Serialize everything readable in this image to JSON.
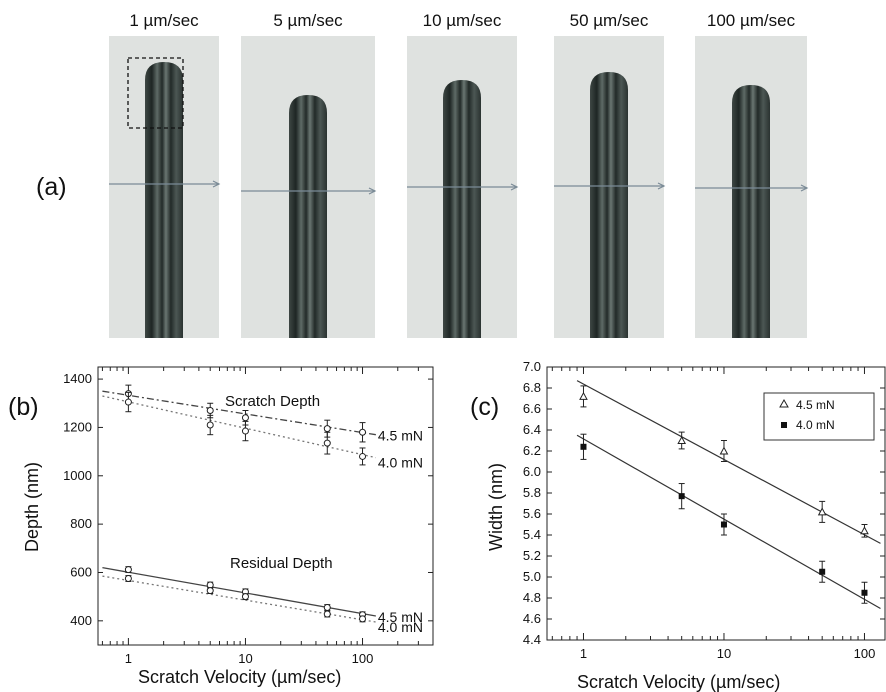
{
  "panel_a": {
    "label": "(a)",
    "images": [
      {
        "velocity_label": "1 µm/sec"
      },
      {
        "velocity_label": "5 µm/sec"
      },
      {
        "velocity_label": "10 µm/sec"
      },
      {
        "velocity_label": "50 µm/sec"
      },
      {
        "velocity_label": "100 µm/sec"
      }
    ]
  },
  "chart_data": [
    {
      "panel": "(b)",
      "type": "line",
      "xlabel": "Scratch Velocity (µm/sec)",
      "ylabel": "Depth (nm)",
      "xscale": "log",
      "xlim": [
        0.55,
        400
      ],
      "ylim": [
        300,
        1450
      ],
      "xticks": [
        1,
        10,
        100
      ],
      "xtick_labels": [
        "1",
        "10",
        "100"
      ],
      "yticks": [
        400,
        600,
        800,
        1000,
        1200,
        1400
      ],
      "ytick_labels": [
        "400",
        "600",
        "800",
        "1000",
        "1200",
        "1400"
      ],
      "annotations": [
        "Scratch Depth",
        "Residual Depth"
      ],
      "x": [
        1,
        5,
        10,
        50,
        100
      ],
      "series": [
        {
          "name": "4.5 mN",
          "group": "Scratch Depth",
          "values": [
            1340,
            1270,
            1240,
            1195,
            1180
          ],
          "errors": [
            35,
            30,
            30,
            35,
            40
          ],
          "fit": [
            1350,
            1170
          ]
        },
        {
          "name": "4.0 mN",
          "group": "Scratch Depth",
          "values": [
            1305,
            1210,
            1185,
            1135,
            1080
          ],
          "errors": [
            40,
            40,
            40,
            45,
            35
          ],
          "fit": [
            1330,
            1075
          ]
        },
        {
          "name": "4.5 mN",
          "group": "Residual Depth",
          "values": [
            612,
            548,
            520,
            455,
            425
          ],
          "errors": [
            12,
            12,
            12,
            12,
            12
          ],
          "fit": [
            620,
            420
          ]
        },
        {
          "name": "4.0 mN",
          "group": "Residual Depth",
          "values": [
            575,
            525,
            500,
            428,
            408
          ],
          "errors": [
            12,
            12,
            12,
            12,
            12
          ],
          "fit": [
            585,
            395
          ]
        }
      ]
    },
    {
      "panel": "(c)",
      "type": "scatter",
      "xlabel": "Scratch Velocity (µm/sec)",
      "ylabel": "Width (nm)",
      "xscale": "log",
      "xlim": [
        0.55,
        140
      ],
      "ylim": [
        4.4,
        7.0
      ],
      "xticks": [
        1,
        10,
        100
      ],
      "xtick_labels": [
        "1",
        "10",
        "100"
      ],
      "yticks": [
        4.4,
        4.6,
        4.8,
        5.0,
        5.2,
        5.4,
        5.6,
        5.8,
        6.0,
        6.2,
        6.4,
        6.6,
        6.8,
        7.0
      ],
      "ytick_labels": [
        "4.4",
        "4.6",
        "4.8",
        "5.0",
        "5.2",
        "5.4",
        "5.6",
        "5.8",
        "6.0",
        "6.2",
        "6.4",
        "6.6",
        "6.8",
        "7.0"
      ],
      "legend": "top-right",
      "x": [
        1,
        5,
        10,
        50,
        100
      ],
      "series": [
        {
          "name": "4.5 mN",
          "marker": "open-triangle",
          "values": [
            6.72,
            6.3,
            6.2,
            5.62,
            5.44
          ],
          "errors": [
            0.1,
            0.08,
            0.1,
            0.1,
            0.06
          ],
          "fit": [
            6.87,
            5.32
          ]
        },
        {
          "name": "4.0 mN",
          "marker": "filled-square",
          "values": [
            6.24,
            5.77,
            5.5,
            5.05,
            4.85
          ],
          "errors": [
            0.12,
            0.12,
            0.1,
            0.1,
            0.1
          ],
          "fit": [
            6.35,
            4.7
          ]
        }
      ]
    }
  ]
}
